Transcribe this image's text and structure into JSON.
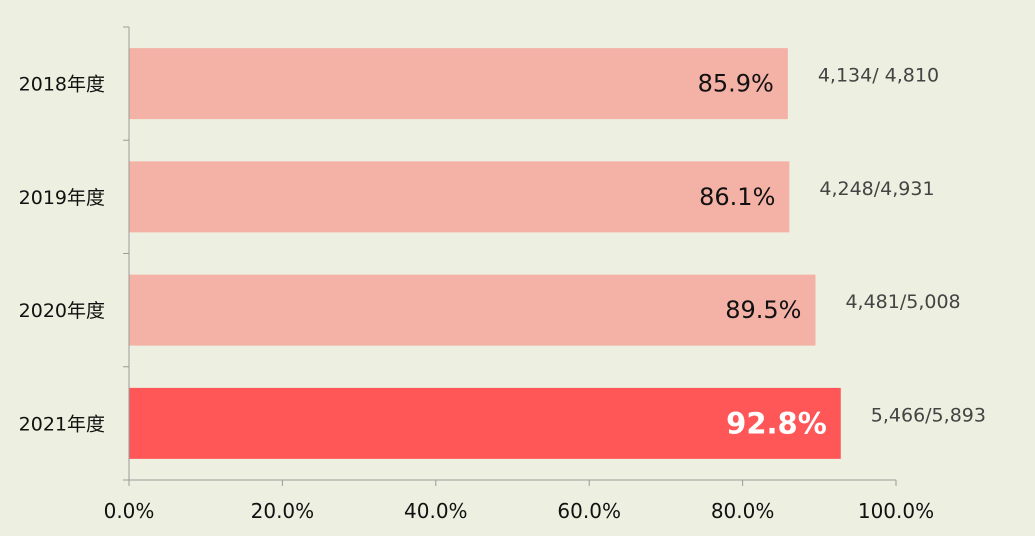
{
  "chart_data": {
    "type": "bar",
    "orientation": "horizontal",
    "categories": [
      "2018年度",
      "2019年度",
      "2020年度",
      "2021年度"
    ],
    "values": [
      85.9,
      86.1,
      89.5,
      92.8
    ],
    "value_labels": [
      "85.9%",
      "86.1%",
      "89.5%",
      "92.8%"
    ],
    "annotations": [
      "4,134/ 4,810",
      "4,248/4,931",
      "4,481/5,008",
      "5,466/5,893"
    ],
    "x_ticks": [
      "0.0%",
      "20.0%",
      "40.0%",
      "60.0%",
      "80.0%",
      "100.0%"
    ],
    "xlim": [
      0,
      100
    ],
    "grid": false,
    "legend": "none",
    "highlight_index": 3,
    "colors": {
      "background": "#edf0e0",
      "bar": "#f4b1a6",
      "bar_highlight": "#ff5757",
      "axis": "#9a9a9a"
    }
  }
}
